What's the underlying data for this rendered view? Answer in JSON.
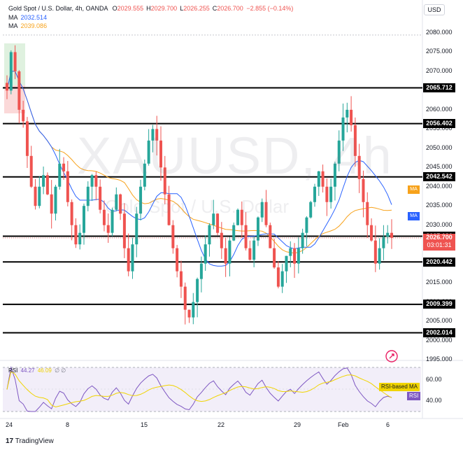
{
  "header": {
    "symbol_line": "Gold Spot / U.S. Dollar, 4h, OANDA",
    "ohlc": [
      {
        "k": "O",
        "v": "2029.555"
      },
      {
        "k": "H",
        "v": "2029.700"
      },
      {
        "k": "L",
        "v": "2026.255"
      },
      {
        "k": "C",
        "v": "2026.700"
      }
    ],
    "change": "−2.855 (−0.14%)",
    "ma1_label": "MA",
    "ma1_value": "2032.514",
    "ma2_label": "MA",
    "ma2_value": "2039.086",
    "currency": "USD"
  },
  "watermark": {
    "symbol": "XAUUSD, 4h",
    "name": "Gold Spot / U.S. Dollar"
  },
  "price_ticks": [
    "2080.000",
    "2075.000",
    "2070.000",
    "2065.000",
    "2060.000",
    "2055.000",
    "2050.000",
    "2045.000",
    "2040.000",
    "2035.000",
    "2030.000",
    "2025.000",
    "2020.000",
    "2015.000",
    "2010.000",
    "2005.000",
    "2000.000",
    "1995.000"
  ],
  "levels": [
    "2065.712",
    "2056.402",
    "2042.542",
    "2027.136",
    "2020.442",
    "2009.399",
    "2002.014"
  ],
  "current": {
    "price": "2026.700",
    "countdown": "03:01:31"
  },
  "ma_tags": {
    "ma2": "MA",
    "ma1": "MA"
  },
  "dates": [
    "24",
    "8",
    "15",
    "22",
    "29",
    "Feb",
    "6"
  ],
  "rsi": {
    "label": "RSI",
    "value1": "44.27",
    "value2": "46.09",
    "extra": "∅ ∅",
    "ticks": [
      "60.00",
      "40.00"
    ],
    "based_ma_tag": "RSI-based MA",
    "rsi_tag": "RSI"
  },
  "branding": "TradingView",
  "colors": {
    "up": "#26a69a",
    "down": "#ef5350",
    "ma1": "#2962ff",
    "ma2": "#f7a21b",
    "rsi": "#7e57c2",
    "rsi_ma": "#f0d400"
  },
  "chart_data": {
    "type": "candlestick",
    "timeframe": "4h",
    "y_range": [
      1995,
      2082
    ],
    "current_price": 2026.7,
    "horizontal_levels": [
      2065.712,
      2056.402,
      2042.542,
      2027.136,
      2020.442,
      2009.399,
      2002.014
    ],
    "ma1_last": 2032.514,
    "ma2_last": 2039.086,
    "rsi_last": 44.27,
    "rsi_ma_last": 46.09,
    "closes": [
      2065,
      2075,
      2070,
      2060,
      2057,
      2048,
      2040,
      2035,
      2040,
      2043,
      2038,
      2033,
      2040,
      2046,
      2044,
      2036,
      2030,
      2025,
      2028,
      2035,
      2040,
      2043,
      2040,
      2034,
      2030,
      2028,
      2034,
      2038,
      2033,
      2024,
      2018,
      2025,
      2033,
      2040,
      2046,
      2052,
      2055,
      2052,
      2045,
      2038,
      2030,
      2024,
      2018,
      2014,
      2008,
      2006,
      2010,
      2016,
      2020,
      2025,
      2030,
      2033,
      2028,
      2024,
      2020,
      2026,
      2030,
      2034,
      2030,
      2024,
      2021,
      2026,
      2032,
      2036,
      2030,
      2024,
      2019,
      2014,
      2018,
      2022,
      2024,
      2020,
      2024,
      2028,
      2032,
      2036,
      2040,
      2044,
      2040,
      2036,
      2040,
      2046,
      2052,
      2058,
      2060,
      2056,
      2048,
      2042,
      2036,
      2030,
      2026,
      2020,
      2024,
      2027,
      2028,
      2026.7
    ]
  }
}
